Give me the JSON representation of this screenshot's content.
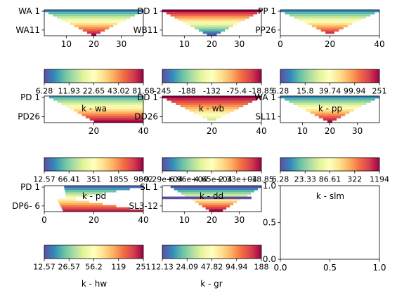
{
  "chart_data": [
    {
      "type": "heatmap",
      "name": "wa",
      "title": "",
      "xlabel": "",
      "shape": "triangle",
      "yticks": [
        "WA 1",
        "WA11"
      ],
      "xticks": [
        "10",
        "20",
        "30"
      ],
      "xlim": [
        2,
        38
      ],
      "colorbar": {
        "label": "k - wa",
        "ticks": [
          "6.28",
          "11.93",
          "22.65",
          "43.02",
          "81.68"
        ]
      }
    },
    {
      "type": "heatmap",
      "name": "dd",
      "title": "",
      "xlabel": "",
      "shape": "triangle-reversed",
      "yticks": [
        "DD 1",
        "WB11"
      ],
      "xticks": [
        "10",
        "20",
        "30"
      ],
      "xlim": [
        2,
        38
      ],
      "colorbar": {
        "label": "k - wb",
        "ticks": [
          "-245",
          "-188",
          "-132",
          "-75.4",
          "-18.85"
        ]
      }
    },
    {
      "type": "heatmap",
      "name": "pp",
      "title": "",
      "xlabel": "",
      "shape": "triangle",
      "yticks": [
        "PP 1",
        "PP26"
      ],
      "xticks": [
        "0",
        "20",
        "40"
      ],
      "xlim": [
        0,
        40
      ],
      "colorbar": {
        "label": "k - pp",
        "ticks": [
          "6.28",
          "15.8",
          "39.74",
          "99.94",
          "251"
        ]
      }
    },
    {
      "type": "heatmap",
      "name": "pd",
      "title": "",
      "xlabel": "",
      "shape": "right-triangle",
      "yticks": [
        "PD 1",
        "PD26"
      ],
      "xticks": [
        "20",
        "40"
      ],
      "xlim": [
        0,
        40
      ],
      "colorbar": {
        "label": "k - pd",
        "ticks": [
          "12.57",
          "66.41",
          "351",
          "1855",
          "9802"
        ]
      }
    },
    {
      "type": "heatmap",
      "name": "wb",
      "title": "",
      "xlabel": "",
      "shape": "inverted-triangle",
      "yticks": [
        "DD 1",
        "DD26"
      ],
      "xticks": [
        "20",
        "40"
      ],
      "xlim": [
        0,
        40
      ],
      "colorbar": {
        "label": "k - dd",
        "ticks": [
          "-9.29e+04",
          "-6.96e+04",
          "-4.65e+04",
          "-2.33e+04",
          "-18.85"
        ]
      }
    },
    {
      "type": "heatmap",
      "name": "slm",
      "title": "",
      "xlabel": "",
      "shape": "triangle",
      "yticks": [
        "WA 1",
        "SL11"
      ],
      "xticks": [
        "10",
        "20",
        "30"
      ],
      "xlim": [
        2,
        38
      ],
      "colorbar": {
        "label": "k - slm",
        "ticks": [
          "6.28",
          "23.33",
          "86.61",
          "322",
          "1194"
        ]
      }
    },
    {
      "type": "heatmap",
      "name": "hw",
      "title": "",
      "xlabel": "",
      "shape": "hw",
      "yticks": [
        "PD 1",
        "DP6- 6"
      ],
      "xticks": [
        "0",
        "20",
        "40"
      ],
      "xlim": [
        0,
        40
      ],
      "colorbar": {
        "label": "k - hw",
        "ticks": [
          "12.57",
          "26.57",
          "56.2",
          "119",
          "251"
        ]
      }
    },
    {
      "type": "heatmap",
      "name": "gr",
      "title": "",
      "xlabel": "",
      "shape": "staircase",
      "yticks": [
        "SL 1",
        "SL3-12"
      ],
      "xticks": [
        "10",
        "20",
        "30"
      ],
      "xlim": [
        2,
        38
      ],
      "colorbar": {
        "label": "k - gr",
        "ticks": [
          "12.13",
          "24.09",
          "47.82",
          "94.94",
          "188"
        ]
      }
    },
    {
      "type": "scatter",
      "name": "empty",
      "title": "",
      "xlabel": "",
      "ylabel": "",
      "xlim": [
        0,
        1
      ],
      "ylim": [
        0,
        1
      ],
      "xticks": [
        "0.0",
        "0.5",
        "1.0"
      ],
      "yticks": [
        "0.0",
        "0.5",
        "1.0"
      ],
      "series": []
    }
  ],
  "colors": {
    "colormap": "Spectral_r",
    "axes": "#000000",
    "background": "#ffffff"
  }
}
